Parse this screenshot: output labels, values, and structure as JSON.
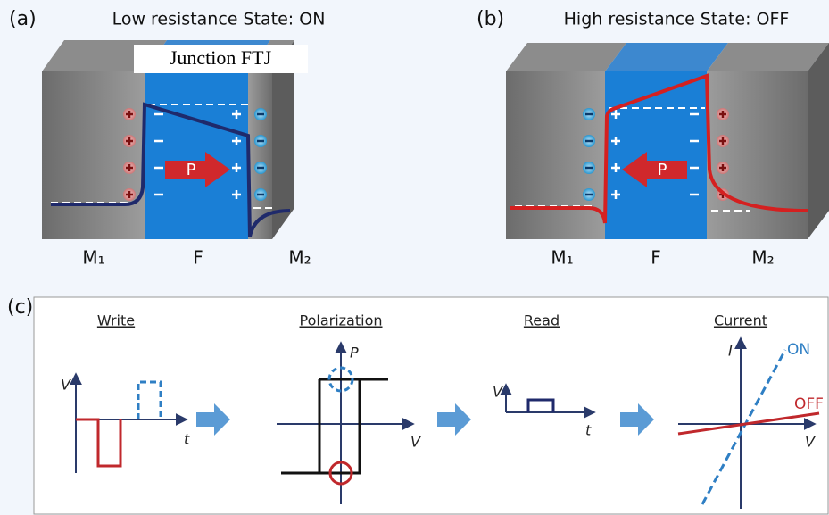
{
  "panel_a": {
    "label": "(a)",
    "title": "Low resistance State: ON",
    "overlay": "Junction FTJ",
    "arrow": "P",
    "layers": [
      "M₁",
      "F",
      "M₂"
    ]
  },
  "panel_b": {
    "label": "(b)",
    "title": "High resistance State: OFF",
    "arrow": "P",
    "layers": [
      "M₁",
      "F",
      "M₂"
    ]
  },
  "panel_c": {
    "label": "(c)",
    "steps": [
      {
        "title": "Write",
        "y_axis": "V",
        "x_axis": "t"
      },
      {
        "title": "Polarization",
        "y_axis": "P",
        "x_axis": "V"
      },
      {
        "title": "Read",
        "y_axis": "V",
        "x_axis": "t"
      },
      {
        "title": "Current",
        "y_axis": "I",
        "x_axis": "V",
        "lines": [
          "ON",
          "OFF"
        ]
      }
    ]
  }
}
